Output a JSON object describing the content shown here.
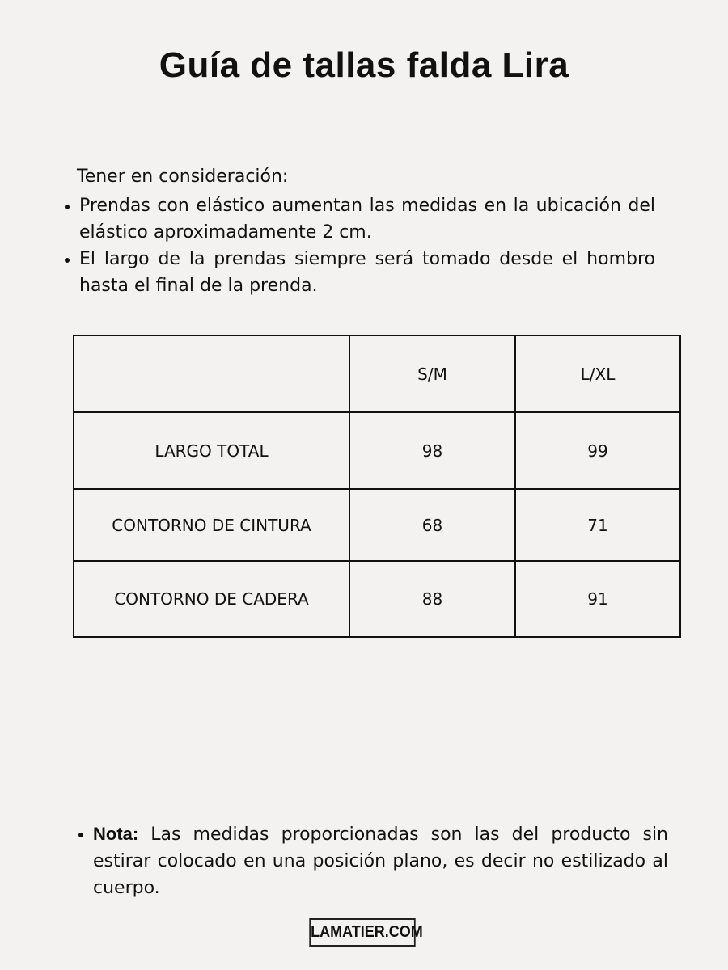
{
  "title": "Guía de tallas falda Lira",
  "intro": "Tener en consideración:",
  "bullets": [
    "Prendas con elástico aumentan las medidas en la ubicación del elástico aproximadamente 2 cm.",
    "El largo de la prendas siempre será tomado desde el hombro hasta el final de la prenda."
  ],
  "table": {
    "headers": [
      "",
      "S/M",
      "L/XL"
    ],
    "rows": [
      {
        "label": "LARGO TOTAL",
        "values": [
          "98",
          "99"
        ]
      },
      {
        "label": "CONTORNO DE CINTURA",
        "values": [
          "68",
          "71"
        ]
      },
      {
        "label": "CONTORNO DE CADERA",
        "values": [
          "88",
          "91"
        ]
      }
    ]
  },
  "note": {
    "label": "Nota:",
    "text": " Las medidas proporcionadas son las del producto sin estirar colocado en una posición plano, es decir no estilizado al cuerpo."
  },
  "logo": "LAMATIER.COM"
}
